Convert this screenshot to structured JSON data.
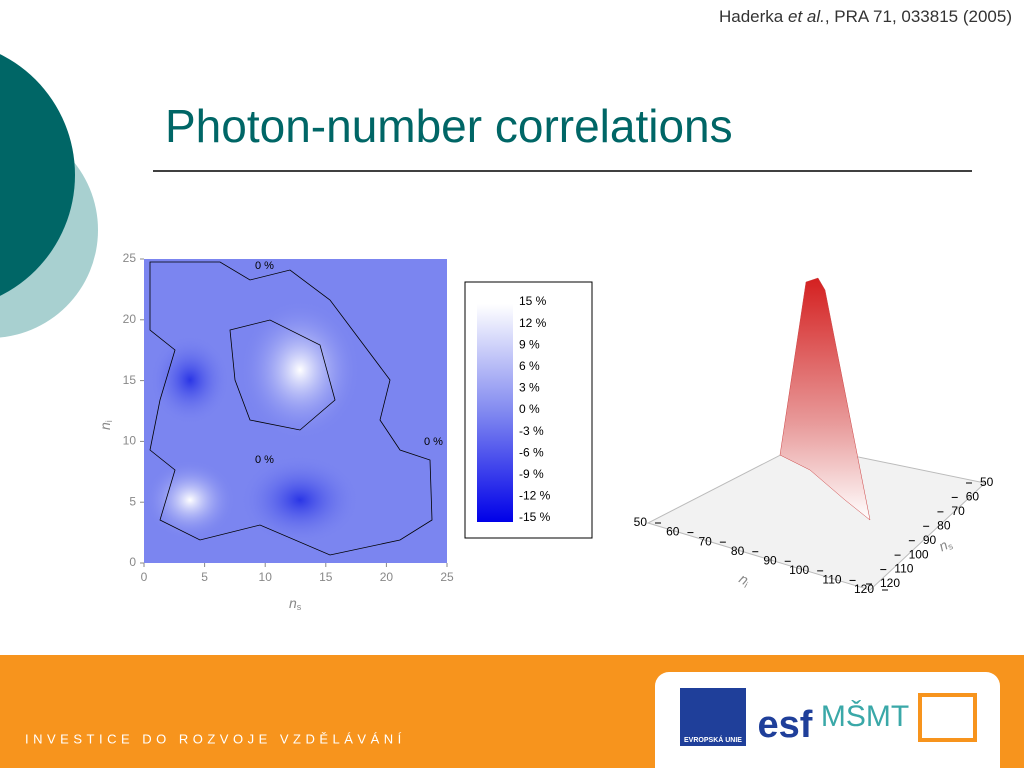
{
  "header": {
    "citation_author": "Haderka",
    "citation_etal": "et al.",
    "citation_rest": ", PRA 71, 033815 (2005)",
    "title": "Photon-number correlations"
  },
  "contour_plot": {
    "xlim": [
      0,
      25
    ],
    "ylim": [
      0,
      25
    ],
    "xticks": [
      0,
      5,
      10,
      15,
      20,
      25
    ],
    "yticks": [
      0,
      5,
      10,
      15,
      20,
      25
    ],
    "xlabel": "n",
    "xlabel_sub": "s",
    "ylabel": "n",
    "ylabel_sub": "i",
    "contour_labels": [
      "0 %",
      "0 %",
      "0 %"
    ]
  },
  "colorbar": {
    "labels": [
      "15 %",
      "12 %",
      "9 %",
      "6 %",
      "3 %",
      "0 %",
      "-3 %",
      "-6 %",
      "-9 %",
      "-12 %",
      "-15 %"
    ]
  },
  "surface_plot": {
    "ilim": [
      50,
      120
    ],
    "slim": [
      50,
      120
    ],
    "i_ticks": [
      50,
      60,
      70,
      80,
      90,
      100,
      110,
      120
    ],
    "s_ticks": [
      50,
      60,
      70,
      80,
      90,
      100,
      110,
      120
    ],
    "i_label": "n",
    "i_sub": "i",
    "s_label": "n",
    "s_sub": "s"
  },
  "footer": {
    "text": "INVESTICE DO ROZVOJE VZDĚLÁVÁNÍ",
    "logos": [
      "EVROPSKÁ UNIE",
      "esf",
      "MŠMT"
    ]
  }
}
